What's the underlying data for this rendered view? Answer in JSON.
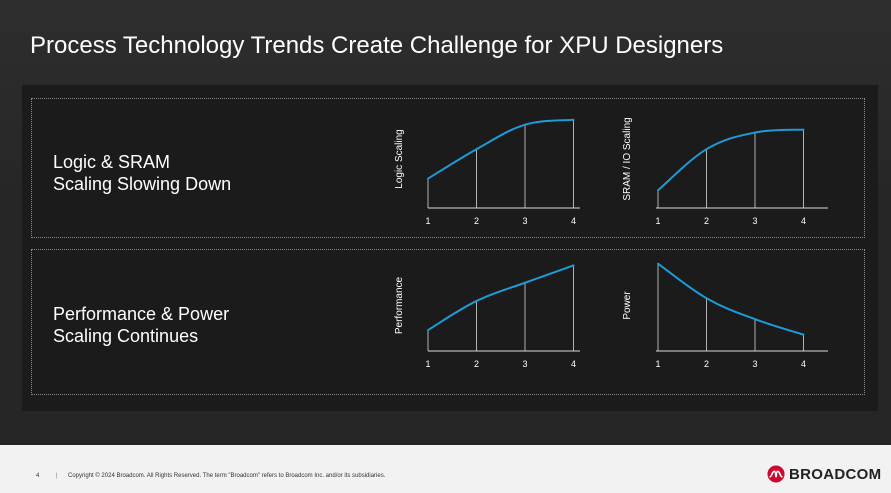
{
  "slide": {
    "title": "Process Technology Trends Create Challenge for XPU Designers"
  },
  "sections": [
    {
      "line1": "Logic & SRAM",
      "line2": "Scaling Slowing Down"
    },
    {
      "line1": "Performance & Power",
      "line2": "Scaling Continues"
    }
  ],
  "chart_data": [
    {
      "type": "line",
      "ylabel": "Logic Scaling",
      "xlabel": "",
      "categories": [
        "1",
        "2",
        "3",
        "4"
      ],
      "values": [
        0.3,
        0.6,
        0.85,
        0.9
      ],
      "ylim": [
        0,
        1.0
      ],
      "line_color": "#1e9ad6"
    },
    {
      "type": "line",
      "ylabel": "SRAM / IO Scaling",
      "xlabel": "",
      "categories": [
        "1",
        "2",
        "3",
        "4"
      ],
      "values": [
        0.18,
        0.6,
        0.77,
        0.8
      ],
      "ylim": [
        0,
        1.0
      ],
      "line_color": "#1e9ad6"
    },
    {
      "type": "line",
      "ylabel": "Performance",
      "xlabel": "",
      "categories": [
        "1",
        "2",
        "3",
        "4"
      ],
      "values": [
        0.23,
        0.55,
        0.75,
        0.94
      ],
      "ylim": [
        0,
        1.0
      ],
      "line_color": "#1e9ad6"
    },
    {
      "type": "line",
      "ylabel": "Power",
      "xlabel": "",
      "categories": [
        "1",
        "2",
        "3",
        "4"
      ],
      "values": [
        0.96,
        0.58,
        0.35,
        0.18
      ],
      "ylim": [
        0,
        1.0
      ],
      "line_color": "#1e9ad6"
    }
  ],
  "footer": {
    "page_number": "4",
    "separator": "|",
    "copyright": "Copyright © 2024 Broadcom.  All Rights Reserved. The term \"Broadcom\" refers to Broadcom Inc. and/or its subsidiaries.",
    "logo_text": "BROADCOM",
    "logo_color": "#cc092f"
  }
}
